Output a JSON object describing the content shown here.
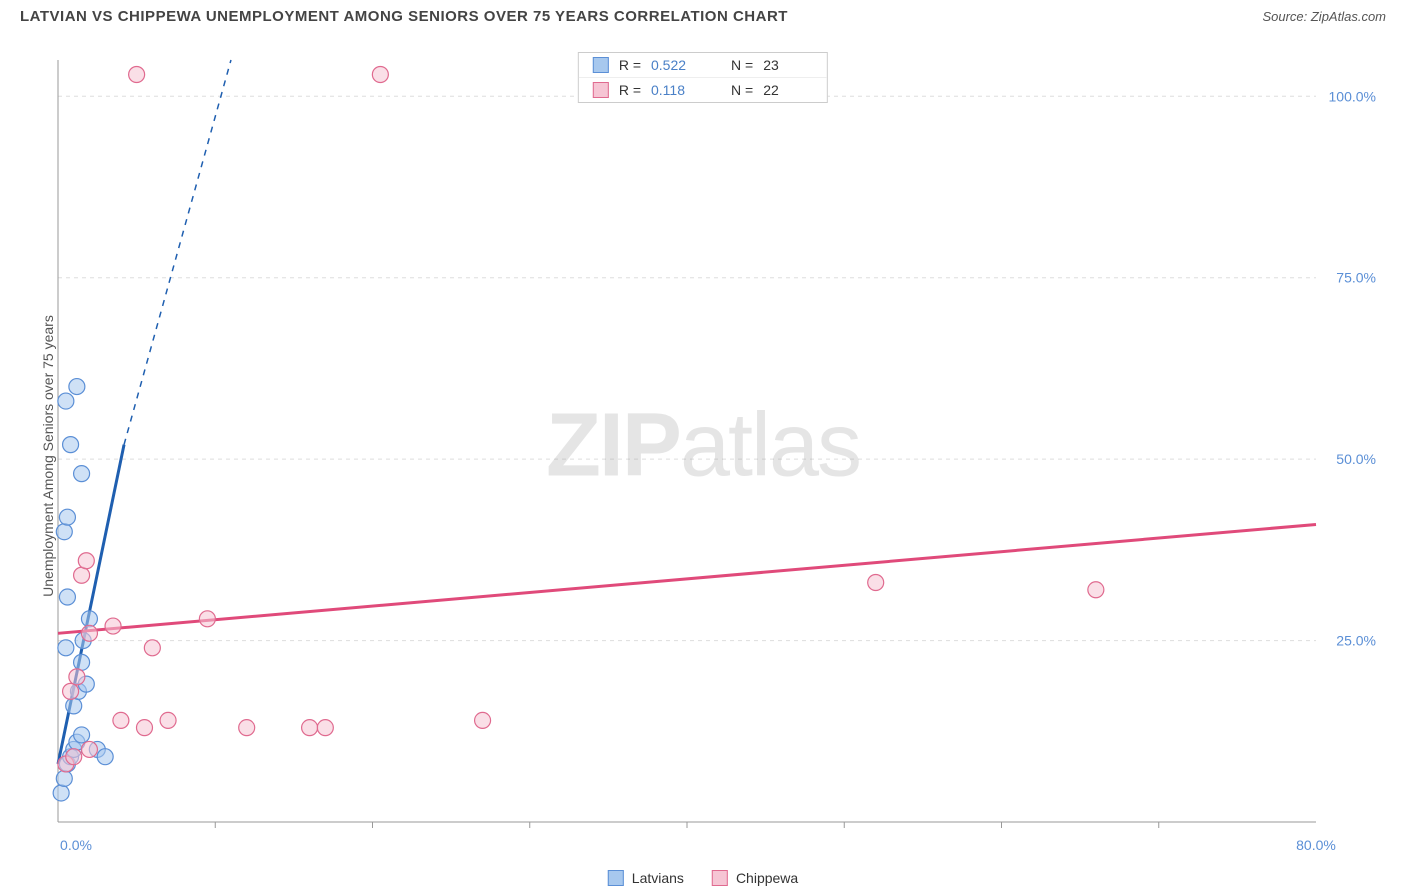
{
  "title": "LATVIAN VS CHIPPEWA UNEMPLOYMENT AMONG SENIORS OVER 75 YEARS CORRELATION CHART",
  "source": "Source: ZipAtlas.com",
  "y_axis_label": "Unemployment Among Seniors over 75 years",
  "watermark": {
    "bold": "ZIP",
    "rest": "atlas"
  },
  "chart": {
    "type": "scatter-correlation",
    "background_color": "#ffffff",
    "grid_color": "#dddddd",
    "axis_color": "#999999",
    "tick_label_color": "#5b8fd6",
    "xlim": [
      0,
      80
    ],
    "ylim": [
      0,
      105
    ],
    "y_ticks": [
      25.0,
      50.0,
      75.0,
      100.0
    ],
    "y_tick_labels": [
      "25.0%",
      "50.0%",
      "75.0%",
      "100.0%"
    ],
    "x_ticks": [
      0.0,
      80.0
    ],
    "x_tick_labels": [
      "0.0%",
      "80.0%"
    ],
    "x_minor_ticks": [
      10,
      20,
      30,
      40,
      50,
      60,
      70
    ],
    "marker_radius": 8,
    "marker_opacity": 0.55,
    "series": [
      {
        "name": "Latvians",
        "fill_color": "#a7c8ee",
        "stroke_color": "#5b8fd6",
        "line_color": "#1f5fb0",
        "R": "0.522",
        "N": "23",
        "trend": {
          "x1": 0,
          "y1": 8,
          "x2": 4.2,
          "y2": 52,
          "dash_to_x": 11,
          "dash_to_y": 105
        },
        "points": [
          [
            0.2,
            4
          ],
          [
            0.4,
            6
          ],
          [
            0.6,
            8
          ],
          [
            0.8,
            9
          ],
          [
            1.0,
            10
          ],
          [
            1.2,
            11
          ],
          [
            1.5,
            12
          ],
          [
            1.0,
            16
          ],
          [
            1.3,
            18
          ],
          [
            1.8,
            19
          ],
          [
            1.5,
            22
          ],
          [
            0.5,
            24
          ],
          [
            1.6,
            25
          ],
          [
            2.0,
            28
          ],
          [
            0.6,
            31
          ],
          [
            0.4,
            40
          ],
          [
            0.6,
            42
          ],
          [
            0.8,
            52
          ],
          [
            1.5,
            48
          ],
          [
            0.5,
            58
          ],
          [
            1.2,
            60
          ],
          [
            2.5,
            10
          ],
          [
            3.0,
            9
          ]
        ]
      },
      {
        "name": "Chippewa",
        "fill_color": "#f6c5d4",
        "stroke_color": "#e06a8f",
        "line_color": "#e04a7a",
        "R": "0.118",
        "N": "22",
        "trend": {
          "x1": 0,
          "y1": 26,
          "x2": 80,
          "y2": 41
        },
        "points": [
          [
            0.5,
            8
          ],
          [
            1.0,
            9
          ],
          [
            2.0,
            10
          ],
          [
            4.0,
            14
          ],
          [
            5.5,
            13
          ],
          [
            7.0,
            14
          ],
          [
            12.0,
            13
          ],
          [
            16.0,
            13
          ],
          [
            17.0,
            13
          ],
          [
            27.0,
            14
          ],
          [
            2.0,
            26
          ],
          [
            3.5,
            27
          ],
          [
            6.0,
            24
          ],
          [
            9.5,
            28
          ],
          [
            1.5,
            34
          ],
          [
            1.8,
            36
          ],
          [
            52.0,
            33
          ],
          [
            66.0,
            32
          ],
          [
            5.0,
            103
          ],
          [
            20.5,
            103
          ],
          [
            0.8,
            18
          ],
          [
            1.2,
            20
          ]
        ]
      }
    ],
    "stats_legend": {
      "r_label": "R =",
      "n_label": "N ="
    },
    "bottom_legend": [
      "Latvians",
      "Chippewa"
    ]
  }
}
